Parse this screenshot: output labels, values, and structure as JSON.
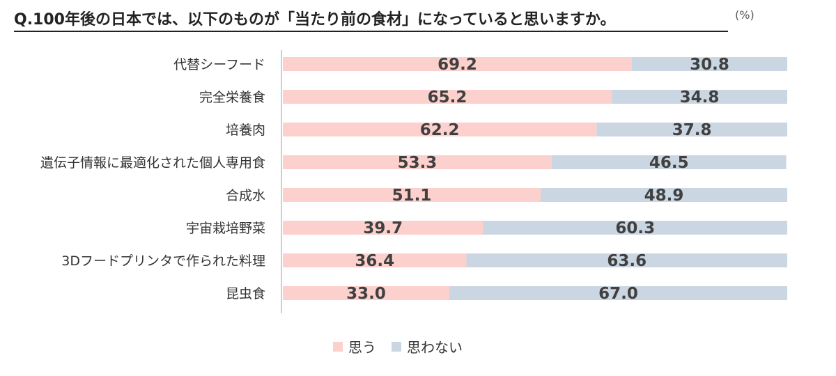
{
  "title": "Q.100年後の日本では、以下のものが「当たり前の食材」になっていると思いますか。",
  "unit_label": "(%)",
  "colors": {
    "agree": "#fcd0cc",
    "disagree": "#cbd6e3",
    "axis": "#bfbfbf",
    "value_text": "#404040"
  },
  "chart_data": {
    "type": "bar",
    "orientation": "horizontal",
    "stacked": true,
    "title": "Q.100年後の日本では、以下のものが「当たり前の食材」になっていると思いますか。",
    "unit": "%",
    "xlim": [
      0,
      100
    ],
    "categories": [
      "代替シーフード",
      "完全栄養食",
      "培養肉",
      "遺伝子情報に最適化された個人専用食",
      "合成水",
      "宇宙栽培野菜",
      "3Dフードプリンタで作られた料理",
      "昆虫食"
    ],
    "series": [
      {
        "name": "思う",
        "values": [
          69.2,
          65.2,
          62.2,
          53.3,
          51.1,
          39.7,
          36.4,
          33.0
        ],
        "labels": [
          "69.2",
          "65.2",
          "62.2",
          "53.3",
          "51.1",
          "39.7",
          "36.4",
          "33.0"
        ]
      },
      {
        "name": "思わない",
        "values": [
          30.8,
          34.8,
          37.8,
          46.5,
          48.9,
          60.3,
          63.6,
          67.0
        ],
        "labels": [
          "30.8",
          "34.8",
          "37.8",
          "46.5",
          "48.9",
          "60.3",
          "63.6",
          "67.0"
        ]
      }
    ],
    "legend": [
      "思う",
      "思わない"
    ],
    "legend_position": "bottom"
  }
}
